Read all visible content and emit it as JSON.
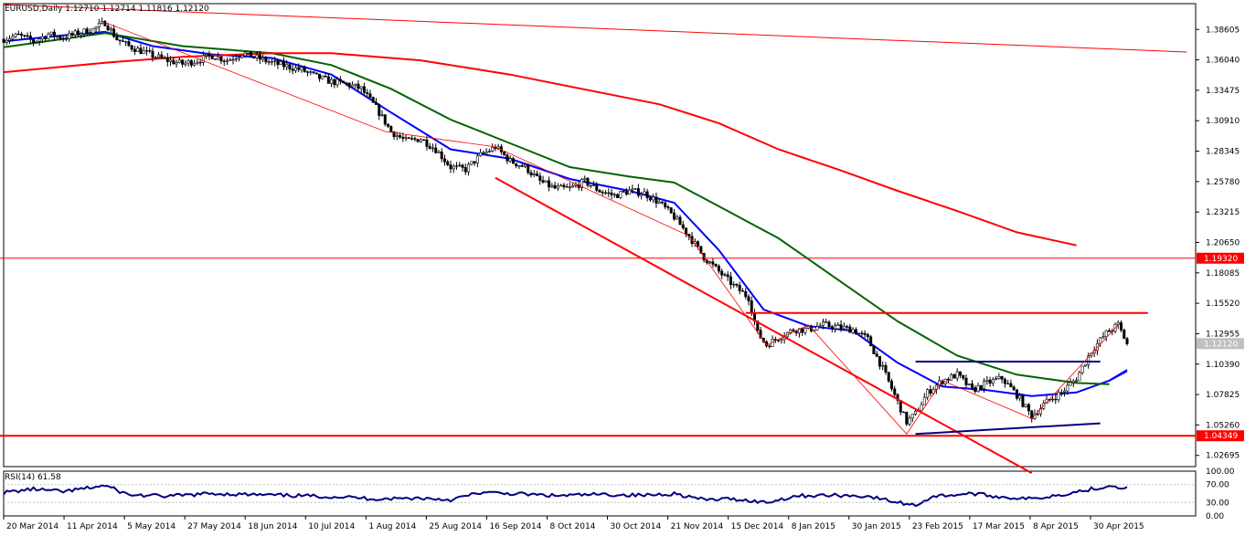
{
  "chart_data": [
    {
      "type": "candlestick",
      "title": "EURUSD,Daily  1.12710 1.12714 1.11816 1.12120",
      "symbol": "EURUSD",
      "timeframe": "Daily",
      "ohlc_last": {
        "open": 1.1271,
        "high": 1.12714,
        "low": 1.11816,
        "close": 1.1212
      },
      "current_price_label": "1.12120",
      "ylim": [
        1.0175,
        1.4078
      ],
      "y_ticks": [
        "1.38605",
        "1.36040",
        "1.33475",
        "1.30910",
        "1.28345",
        "1.25780",
        "1.23215",
        "1.20650",
        "1.18085",
        "1.15520",
        "1.12955",
        "1.10390",
        "1.07825",
        "1.05260",
        "1.02695"
      ],
      "x_ticks": [
        "20 Mar 2014",
        "11 Apr 2014",
        "5 May 2014",
        "27 May 2014",
        "18 Jun 2014",
        "10 Jul 2014",
        "1 Aug 2014",
        "25 Aug 2014",
        "16 Sep 2014",
        "8 Oct 2014",
        "30 Oct 2014",
        "21 Nov 2014",
        "15 Dec 2014",
        "8 Jan 2015",
        "30 Jan 2015",
        "23 Feb 2015",
        "17 Mar 2015",
        "8 Apr 2015",
        "30 Apr 2015"
      ],
      "horizontal_levels": [
        {
          "price": 1.1932,
          "label": "1.19320",
          "color": "#ff0000"
        },
        {
          "price": 1.04349,
          "label": "1.04349",
          "color": "#ff0000"
        }
      ],
      "price_path": [
        [
          0,
          1.378
        ],
        [
          5,
          1.381
        ],
        [
          10,
          1.376
        ],
        [
          15,
          1.382
        ],
        [
          20,
          1.379
        ],
        [
          25,
          1.383
        ],
        [
          30,
          1.386
        ],
        [
          34,
          1.392
        ],
        [
          38,
          1.378
        ],
        [
          42,
          1.372
        ],
        [
          46,
          1.368
        ],
        [
          50,
          1.364
        ],
        [
          55,
          1.36
        ],
        [
          60,
          1.357
        ],
        [
          65,
          1.36
        ],
        [
          70,
          1.364
        ],
        [
          75,
          1.36
        ],
        [
          80,
          1.366
        ],
        [
          85,
          1.362
        ],
        [
          90,
          1.358
        ],
        [
          95,
          1.355
        ],
        [
          100,
          1.352
        ],
        [
          105,
          1.346
        ],
        [
          110,
          1.342
        ],
        [
          115,
          1.34
        ],
        [
          120,
          1.336
        ],
        [
          125,
          1.32
        ],
        [
          130,
          1.3
        ],
        [
          135,
          1.292
        ],
        [
          140,
          1.294
        ],
        [
          145,
          1.285
        ],
        [
          150,
          1.27
        ],
        [
          155,
          1.268
        ],
        [
          160,
          1.28
        ],
        [
          165,
          1.287
        ],
        [
          170,
          1.275
        ],
        [
          175,
          1.27
        ],
        [
          180,
          1.258
        ],
        [
          185,
          1.252
        ],
        [
          190,
          1.252
        ],
        [
          195,
          1.258
        ],
        [
          200,
          1.25
        ],
        [
          205,
          1.246
        ],
        [
          210,
          1.25
        ],
        [
          215,
          1.248
        ],
        [
          220,
          1.24
        ],
        [
          225,
          1.228
        ],
        [
          230,
          1.212
        ],
        [
          235,
          1.194
        ],
        [
          240,
          1.182
        ],
        [
          245,
          1.17
        ],
        [
          250,
          1.16
        ],
        [
          253,
          1.13
        ],
        [
          256,
          1.12
        ],
        [
          260,
          1.126
        ],
        [
          265,
          1.133
        ],
        [
          270,
          1.133
        ],
        [
          275,
          1.137
        ],
        [
          280,
          1.135
        ],
        [
          285,
          1.133
        ],
        [
          290,
          1.125
        ],
        [
          295,
          1.1
        ],
        [
          300,
          1.072
        ],
        [
          303,
          1.055
        ],
        [
          306,
          1.062
        ],
        [
          310,
          1.08
        ],
        [
          315,
          1.09
        ],
        [
          320,
          1.095
        ],
        [
          325,
          1.082
        ],
        [
          330,
          1.088
        ],
        [
          335,
          1.092
        ],
        [
          340,
          1.078
        ],
        [
          345,
          1.06
        ],
        [
          350,
          1.072
        ],
        [
          355,
          1.08
        ],
        [
          360,
          1.092
        ],
        [
          365,
          1.115
        ],
        [
          370,
          1.13
        ],
        [
          374,
          1.137
        ],
        [
          377,
          1.121
        ]
      ],
      "series": [
        {
          "name": "MA-blue",
          "color": "#0000ff",
          "values": [
            [
              0,
              1.376
            ],
            [
              20,
              1.381
            ],
            [
              34,
              1.384
            ],
            [
              50,
              1.372
            ],
            [
              70,
              1.365
            ],
            [
              90,
              1.362
            ],
            [
              110,
              1.348
            ],
            [
              130,
              1.316
            ],
            [
              150,
              1.285
            ],
            [
              170,
              1.277
            ],
            [
              190,
              1.26
            ],
            [
              210,
              1.25
            ],
            [
              225,
              1.24
            ],
            [
              240,
              1.2
            ],
            [
              255,
              1.15
            ],
            [
              270,
              1.136
            ],
            [
              285,
              1.132
            ],
            [
              300,
              1.105
            ],
            [
              315,
              1.085
            ],
            [
              330,
              1.082
            ],
            [
              345,
              1.077
            ],
            [
              360,
              1.08
            ],
            [
              371,
              1.09
            ],
            [
              377,
              1.098
            ]
          ]
        },
        {
          "name": "MA-green",
          "color": "#006400",
          "values": [
            [
              0,
              1.371
            ],
            [
              34,
              1.383
            ],
            [
              60,
              1.372
            ],
            [
              90,
              1.366
            ],
            [
              110,
              1.356
            ],
            [
              130,
              1.336
            ],
            [
              150,
              1.31
            ],
            [
              170,
              1.29
            ],
            [
              190,
              1.27
            ],
            [
              210,
              1.262
            ],
            [
              225,
              1.257
            ],
            [
              240,
              1.237
            ],
            [
              260,
              1.21
            ],
            [
              280,
              1.175
            ],
            [
              300,
              1.14
            ],
            [
              320,
              1.111
            ],
            [
              340,
              1.095
            ],
            [
              360,
              1.088
            ],
            [
              371,
              1.087
            ]
          ]
        },
        {
          "name": "MA-red",
          "color": "#ff0000",
          "values": [
            [
              0,
              1.35
            ],
            [
              34,
              1.358
            ],
            [
              60,
              1.363
            ],
            [
              90,
              1.366
            ],
            [
              110,
              1.366
            ],
            [
              140,
              1.36
            ],
            [
              170,
              1.348
            ],
            [
              200,
              1.333
            ],
            [
              220,
              1.323
            ],
            [
              240,
              1.307
            ],
            [
              260,
              1.285
            ],
            [
              280,
              1.268
            ],
            [
              300,
              1.25
            ],
            [
              320,
              1.233
            ],
            [
              340,
              1.215
            ],
            [
              360,
              1.204
            ]
          ]
        }
      ],
      "trendlines": [
        {
          "color": "#ff0000",
          "width": 2,
          "from": [
            165,
            1.261
          ],
          "to": [
            345,
            1.012
          ]
        },
        {
          "color": "#ff0000",
          "width": 1,
          "from": [
            0,
            1.407
          ],
          "to": [
            397,
            1.367
          ]
        },
        {
          "color": "#ff0000",
          "width": 2,
          "from": [
            249,
            1.147
          ],
          "to": [
            384,
            1.147
          ]
        },
        {
          "color": "#000080",
          "width": 2,
          "from": [
            306,
            1.106
          ],
          "to": [
            368,
            1.106
          ]
        },
        {
          "color": "#000080",
          "width": 2,
          "from": [
            306,
            1.045
          ],
          "to": [
            368,
            1.054
          ]
        }
      ],
      "projections": [
        {
          "color": "#0000ff",
          "from": [
            371,
            1.09
          ],
          "to": [
            377,
            1.099
          ]
        }
      ]
    },
    {
      "type": "line",
      "title": "RSI(14) 61.58",
      "indicator": "RSI(14)",
      "current_value": 61.58,
      "ylim": [
        0,
        100
      ],
      "y_ticks": [
        "100.00",
        "70.00",
        "30.00",
        "0.00"
      ],
      "values": [
        [
          0,
          52
        ],
        [
          10,
          60
        ],
        [
          20,
          54
        ],
        [
          34,
          68
        ],
        [
          42,
          47
        ],
        [
          55,
          44
        ],
        [
          70,
          50
        ],
        [
          85,
          47
        ],
        [
          100,
          45
        ],
        [
          115,
          42
        ],
        [
          125,
          38
        ],
        [
          140,
          40
        ],
        [
          150,
          36
        ],
        [
          160,
          52
        ],
        [
          170,
          50
        ],
        [
          185,
          45
        ],
        [
          200,
          48
        ],
        [
          215,
          46
        ],
        [
          225,
          50
        ],
        [
          235,
          36
        ],
        [
          245,
          38
        ],
        [
          256,
          30
        ],
        [
          266,
          45
        ],
        [
          280,
          46
        ],
        [
          290,
          44
        ],
        [
          300,
          30
        ],
        [
          306,
          24
        ],
        [
          312,
          44
        ],
        [
          325,
          50
        ],
        [
          335,
          42
        ],
        [
          345,
          38
        ],
        [
          355,
          48
        ],
        [
          365,
          60
        ],
        [
          372,
          68
        ],
        [
          377,
          61.58
        ]
      ]
    }
  ]
}
